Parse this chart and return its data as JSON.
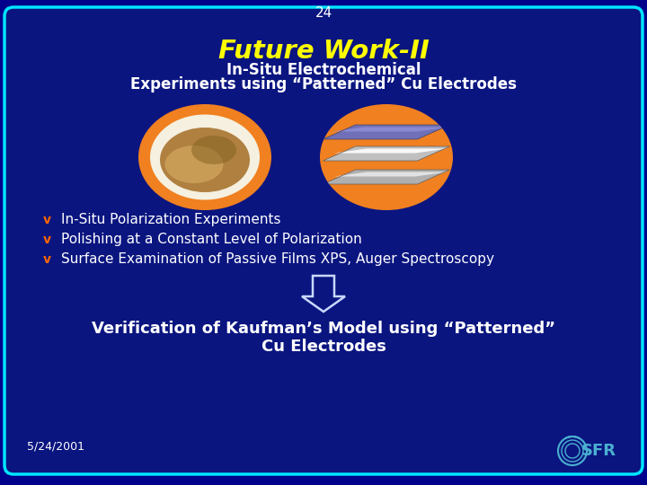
{
  "slide_number": "24",
  "title": "Future Work-II",
  "subtitle_line1": "In-Situ Electrochemical",
  "subtitle_line2": "Experiments using “Patterned” Cu Electrodes",
  "bullet_points": [
    "In-Situ Polarization Experiments",
    "Polishing at a Constant Level of Polarization",
    "Surface Examination of Passive Films XPS, Auger Spectroscopy"
  ],
  "bottom_text_line1": "Verification of Kaufman’s Model using “Patterned”",
  "bottom_text_line2": "Cu Electrodes",
  "date": "5/24/2001",
  "bg_color": "#0a1580",
  "outer_bg": "#00008b",
  "border_color": "#00e5ff",
  "title_color": "#ffff00",
  "subtitle_color": "#ffffff",
  "bullet_color": "#ffffff",
  "bottom_text_color": "#ffffff",
  "date_color": "#ffffff",
  "slide_number_color": "#ffffff",
  "orange_color": "#f08020",
  "arrow_color": "#c8d8ff",
  "bullet_v_color": "#ff6600"
}
